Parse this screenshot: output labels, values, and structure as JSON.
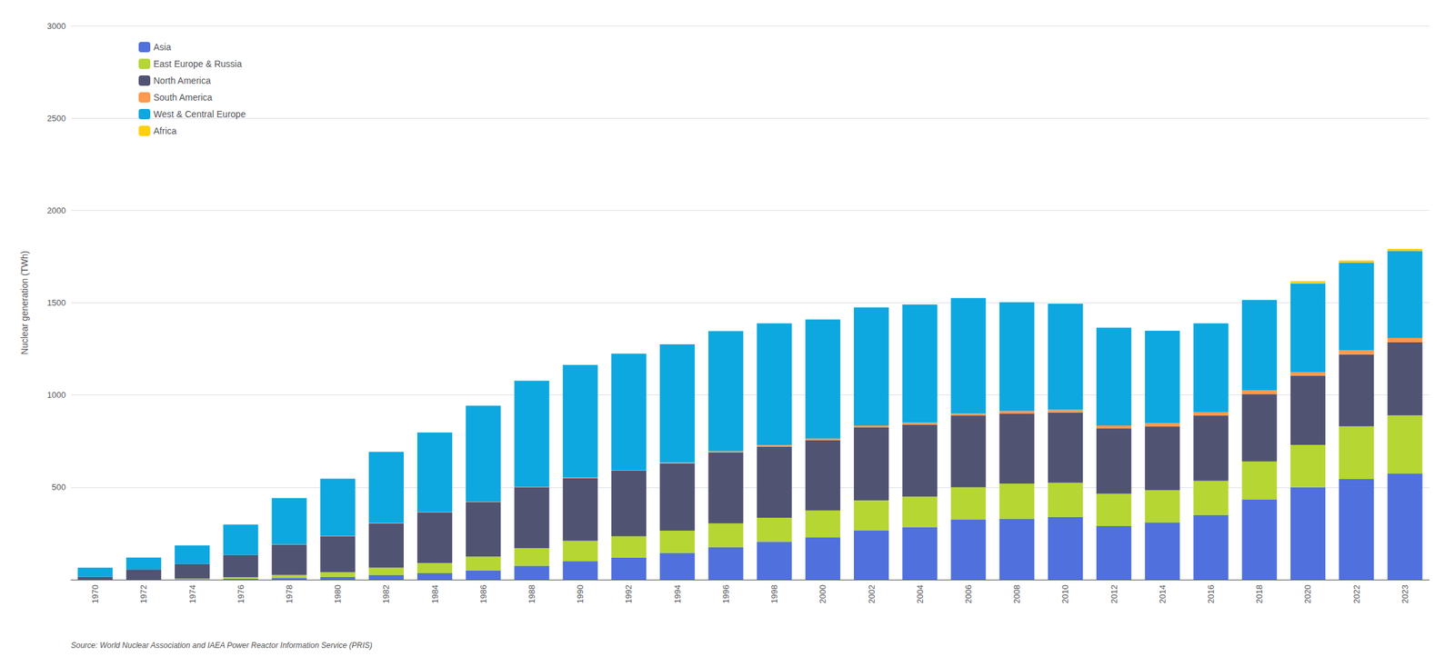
{
  "chart_data": {
    "type": "bar",
    "stacked": true,
    "ylabel": "Nuclear generation (TWh)",
    "annotations": [
      "Source: World Nuclear Association and IAEA Power Reactor Information Service (PRIS)"
    ],
    "categories": [
      "1970",
      "1972",
      "1974",
      "1976",
      "1978",
      "1980",
      "1982",
      "1984",
      "1986",
      "1988",
      "1990",
      "1992",
      "1994",
      "1996",
      "1998",
      "2000",
      "2002",
      "2004",
      "2006",
      "2008",
      "2010",
      "2012",
      "2014",
      "2016",
      "2018",
      "2020",
      "2022",
      "2023"
    ],
    "series": [
      {
        "name": "Asia",
        "values": [
          0,
          0,
          2,
          5,
          10,
          15,
          25,
          35,
          50,
          75,
          100,
          120,
          145,
          175,
          205,
          230,
          265,
          285,
          325,
          330,
          340,
          290,
          310,
          350,
          435,
          500,
          545,
          575
        ]
      },
      {
        "name": "East Europe & Russia",
        "values": [
          0,
          0,
          3,
          8,
          15,
          25,
          40,
          55,
          75,
          95,
          110,
          115,
          120,
          130,
          130,
          145,
          165,
          165,
          175,
          190,
          185,
          175,
          175,
          185,
          205,
          230,
          285,
          315
        ]
      },
      {
        "name": "North America",
        "values": [
          15,
          55,
          80,
          120,
          165,
          195,
          240,
          275,
          295,
          330,
          340,
          355,
          365,
          385,
          385,
          380,
          395,
          390,
          390,
          380,
          380,
          355,
          345,
          355,
          365,
          375,
          390,
          395
        ]
      },
      {
        "name": "South America",
        "values": [
          0,
          0,
          0,
          1,
          2,
          2,
          2,
          2,
          2,
          2,
          3,
          4,
          5,
          6,
          8,
          9,
          10,
          10,
          10,
          13,
          15,
          15,
          18,
          18,
          20,
          20,
          22,
          25
        ]
      },
      {
        "name": "West & Central Europe",
        "values": [
          50,
          65,
          100,
          165,
          250,
          310,
          385,
          430,
          520,
          575,
          610,
          630,
          640,
          650,
          660,
          645,
          640,
          640,
          625,
          590,
          575,
          530,
          500,
          480,
          490,
          480,
          475,
          470
        ]
      },
      {
        "name": "Africa",
        "values": [
          0,
          0,
          0,
          0,
          0,
          0,
          0,
          0,
          0,
          0,
          0,
          0,
          0,
          0,
          0,
          0,
          0,
          0,
          0,
          0,
          0,
          0,
          0,
          0,
          0,
          12,
          12,
          12
        ]
      }
    ],
    "ylim": [
      0,
      3000
    ],
    "yticks": [
      500,
      1000,
      1500,
      2000,
      2500,
      3000
    ],
    "grid": true,
    "legend": "upper left"
  }
}
